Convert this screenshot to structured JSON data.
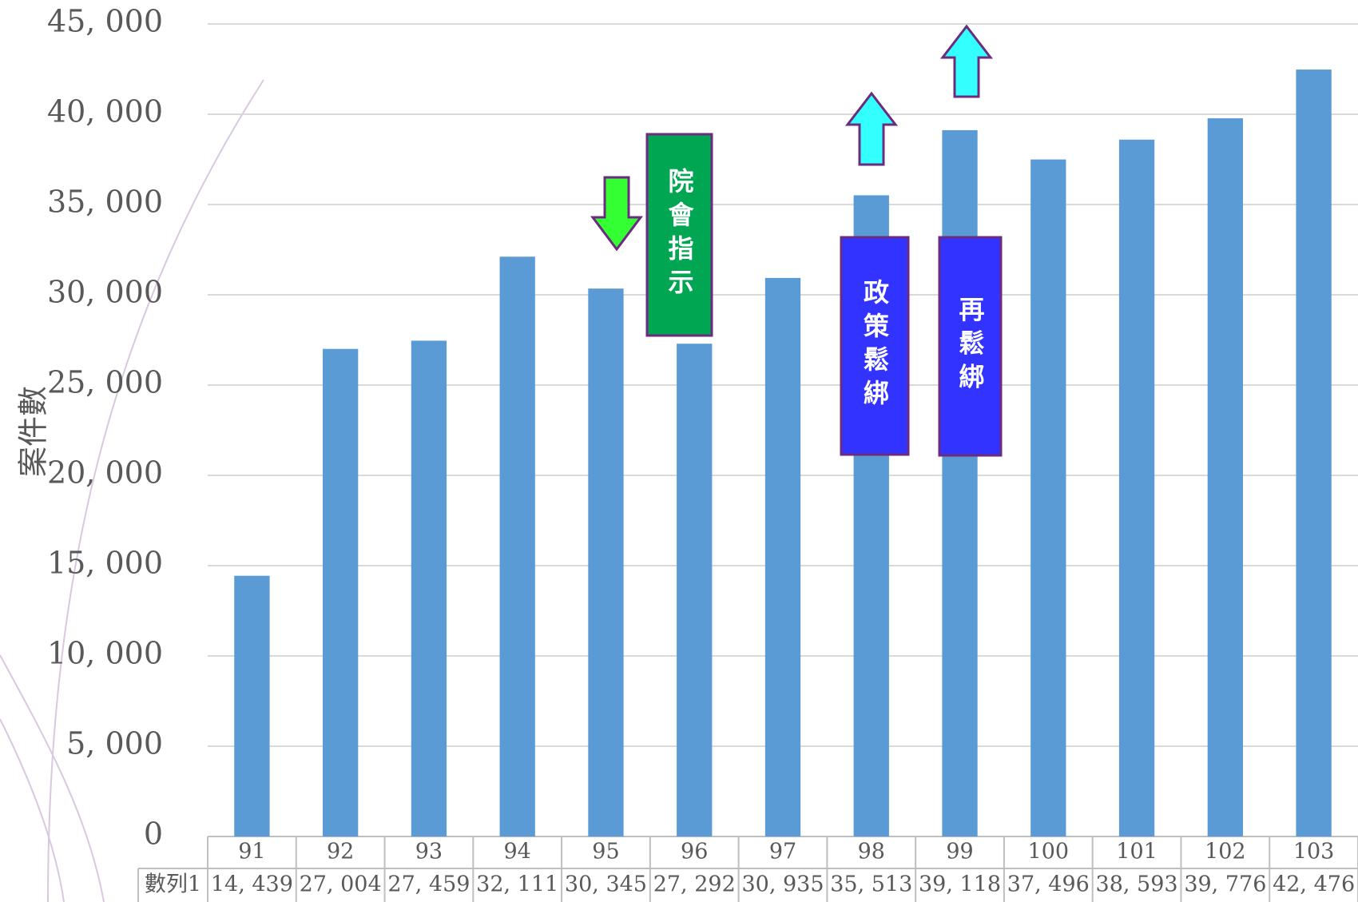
{
  "chart_data": {
    "type": "bar",
    "y_label": "案件數",
    "categories": [
      "91",
      "92",
      "93",
      "94",
      "95",
      "96",
      "97",
      "98",
      "99",
      "100",
      "101",
      "102",
      "103"
    ],
    "series": [
      {
        "name": "數列1",
        "color": "#5b9bd5",
        "values": [
          14439,
          27004,
          27459,
          32111,
          30345,
          27292,
          30935,
          35513,
          39118,
          37496,
          38593,
          39776,
          42476
        ],
        "value_labels": [
          "14, 439",
          "27, 004",
          "27, 459",
          "32, 111",
          "30, 345",
          "27, 292",
          "30, 935",
          "35, 513",
          "39, 118",
          "37, 496",
          "38, 593",
          "39, 776",
          "42, 476"
        ]
      }
    ],
    "ylim": [
      0,
      45000
    ],
    "yticks": [
      0,
      {
        "value": 5000,
        "label": "5, 000"
      },
      {
        "value": 10000,
        "label": "10, 000"
      },
      {
        "value": 15000,
        "label": "15, 000"
      },
      {
        "value": 20000,
        "label": "20, 000"
      },
      {
        "value": 25000,
        "label": "25, 000"
      },
      {
        "value": 30000,
        "label": "30, 000"
      },
      {
        "value": 35000,
        "label": "35, 000"
      },
      {
        "value": 40000,
        "label": "40, 000"
      },
      {
        "value": 45000,
        "label": "45, 000"
      }
    ],
    "grid": true,
    "annotations": [
      {
        "text": "院會指示",
        "color": "#00a651"
      },
      {
        "text": "政策鬆綁",
        "color": "#3333ff"
      },
      {
        "text": "再鬆綁",
        "color": "#3333ff"
      }
    ]
  }
}
